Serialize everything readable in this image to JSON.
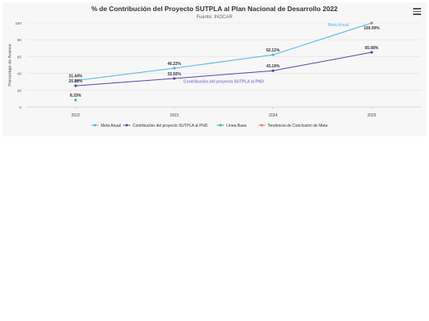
{
  "chart_data": {
    "type": "line",
    "title": "% de Contribución del Proyecto SUTPLA al Plan Nacional de Desarrollo 2022",
    "subtitle": "Fuente: INOCAR",
    "xlabel": "",
    "ylabel": "Porcentaje de Avance",
    "categories": [
      "2022",
      "2023",
      "2024",
      "2025"
    ],
    "yticks": [
      "0",
      "20",
      "40",
      "60",
      "80",
      "100"
    ],
    "ylim": [
      0,
      100
    ],
    "grid": true,
    "legend_position": "bottom",
    "series": [
      {
        "name": "Meta Anual",
        "color": "#4fb3e8",
        "x": [
          "2022",
          "2023",
          "2024",
          "2025"
        ],
        "values": [
          31.44,
          46.22,
          62.12,
          100.0
        ],
        "labels": [
          "31.44%",
          "46.22%",
          "62.12%",
          "100.00%"
        ]
      },
      {
        "name": "Contribución del proyecto SUTPLA al PND",
        "color": "#5b3fa6",
        "x": [
          "2022",
          "2023",
          "2024",
          "2025"
        ],
        "values": [
          25.28,
          33.92,
          43.19,
          65.08
        ],
        "labels": [
          "25.28%",
          "33.92%",
          "43.19%",
          "65.08%"
        ]
      },
      {
        "name": "Línea Base",
        "color": "#2bb88a",
        "x": [
          "2022"
        ],
        "values": [
          8.33
        ],
        "labels": [
          "8.33%"
        ]
      },
      {
        "name": "Tendencia de Conclusión de Meta",
        "color": "#f0764a",
        "x": [
          "2025"
        ],
        "values": [
          100.0
        ],
        "labels": []
      }
    ],
    "annotations": [
      {
        "text": "Meta Anual",
        "color": "#7fc4ec"
      },
      {
        "text": "Contribución del proyecto SUTPLA al PND",
        "color": "#8b7fd0"
      }
    ]
  },
  "menu": {
    "icon": "hamburger-menu-icon"
  }
}
